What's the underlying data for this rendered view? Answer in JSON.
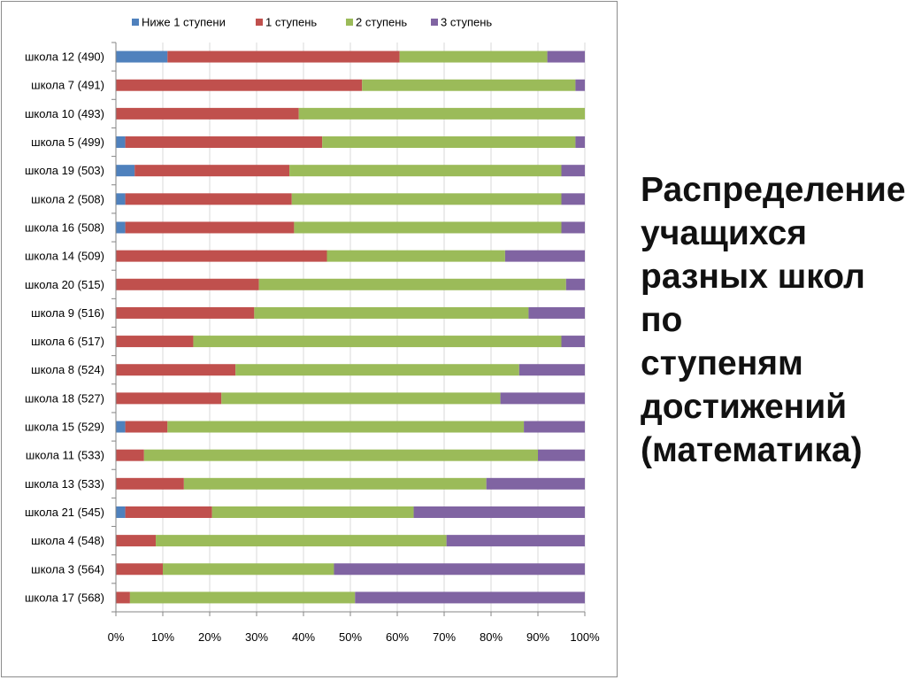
{
  "slide": {
    "title": "Распределение\nучащихся\nразных школ по\nступеням\nдостижений\n(математика)"
  },
  "colors": {
    "below1": "#4f81bd",
    "level1": "#c0504d",
    "level2": "#9bbb59",
    "level3": "#8064a2",
    "grid": "#d9d9d9",
    "axis": "#868686",
    "text": "#000000"
  },
  "chart_data": {
    "type": "bar",
    "orientation": "horizontal",
    "stacked": "100%",
    "title": "",
    "xlabel": "",
    "ylabel": "",
    "xlim": [
      0,
      100
    ],
    "x_ticks": [
      "0%",
      "10%",
      "20%",
      "30%",
      "40%",
      "50%",
      "60%",
      "70%",
      "80%",
      "90%",
      "100%"
    ],
    "grid": "vertical",
    "legend_position": "top",
    "categories": [
      "школа 12 (490)",
      "школа 7 (491)",
      "школа 10 (493)",
      "школа 5 (499)",
      "школа 19 (503)",
      "школа 2 (508)",
      "школа 16 (508)",
      "школа 14 (509)",
      "школа 20 (515)",
      "школа 9 (516)",
      "школа 6 (517)",
      "школа 8 (524)",
      "школа 18 (527)",
      "школа 15 (529)",
      "школа 11 (533)",
      "школа 13 (533)",
      "школа 21 (545)",
      "школа 4 (548)",
      "школа 3 (564)",
      "школа 17 (568)"
    ],
    "series": [
      {
        "name": "Ниже 1 ступени",
        "color_key": "below1",
        "values": [
          11,
          0,
          0,
          2,
          4,
          2,
          2,
          0,
          0,
          0,
          0,
          0,
          0,
          2,
          0,
          0,
          2,
          0,
          0,
          0
        ]
      },
      {
        "name": "1 ступень",
        "color_key": "level1",
        "values": [
          49.5,
          52.5,
          39,
          42,
          33,
          35.5,
          36,
          45,
          30.5,
          29.5,
          16.5,
          25.5,
          22.5,
          9,
          6,
          14.5,
          18.5,
          8.5,
          10,
          3
        ]
      },
      {
        "name": "2 ступень",
        "color_key": "level2",
        "values": [
          31.5,
          45.5,
          61,
          54,
          58,
          57.5,
          57,
          38,
          65.5,
          58.5,
          78.5,
          60.5,
          59.5,
          76,
          84,
          64.5,
          43,
          62,
          36.5,
          48
        ]
      },
      {
        "name": "3 ступень",
        "color_key": "level3",
        "values": [
          8,
          2,
          0,
          2,
          5,
          5,
          5,
          17,
          4,
          12,
          5,
          14,
          18,
          13,
          10,
          21,
          36.5,
          29.5,
          53.5,
          49
        ]
      }
    ]
  }
}
